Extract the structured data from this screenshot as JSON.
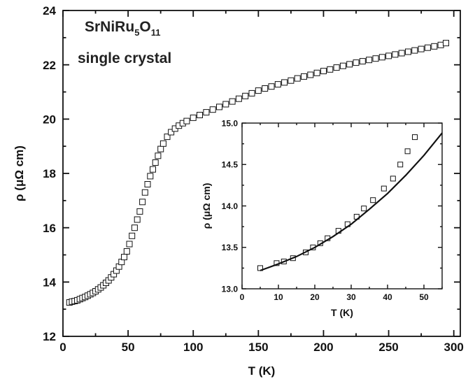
{
  "chart_data": [
    {
      "type": "scatter",
      "xlabel": "T (K)",
      "ylabel": "ρ (μΩ cm)",
      "xlim": [
        0,
        305
      ],
      "ylim": [
        12,
        24
      ],
      "xticks": [
        0,
        50,
        100,
        150,
        200,
        250,
        300
      ],
      "yticks": [
        12,
        14,
        16,
        18,
        20,
        22,
        24
      ],
      "marker": "open-square",
      "annotations": {
        "compound_base": "SrNiRu",
        "compound_sub1": "5",
        "compound_mid": "O",
        "compound_sub2": "11",
        "line2": "single crystal"
      },
      "series": [
        {
          "x": [
            5,
            7,
            9,
            11,
            13,
            15,
            17,
            19,
            21,
            23,
            25,
            27,
            29,
            31,
            33,
            35,
            37,
            39,
            41,
            43,
            45,
            47,
            49,
            51,
            53,
            55,
            57,
            59,
            61,
            63,
            65,
            67,
            69,
            71,
            73,
            75,
            77,
            80,
            83,
            86,
            89,
            92,
            95,
            100,
            105,
            110,
            115,
            120,
            125,
            130,
            135,
            140,
            145,
            150,
            155,
            160,
            165,
            170,
            175,
            180,
            185,
            190,
            195,
            200,
            205,
            210,
            215,
            220,
            225,
            230,
            235,
            240,
            245,
            250,
            255,
            260,
            265,
            270,
            275,
            280,
            285,
            290,
            294
          ],
          "y": [
            13.25,
            13.28,
            13.3,
            13.33,
            13.37,
            13.41,
            13.45,
            13.5,
            13.55,
            13.6,
            13.66,
            13.73,
            13.8,
            13.88,
            13.97,
            14.06,
            14.17,
            14.29,
            14.42,
            14.57,
            14.74,
            14.92,
            15.13,
            15.4,
            15.7,
            16.0,
            16.3,
            16.6,
            16.95,
            17.3,
            17.6,
            17.9,
            18.15,
            18.4,
            18.65,
            18.9,
            19.1,
            19.35,
            19.52,
            19.65,
            19.76,
            19.85,
            19.93,
            20.05,
            20.15,
            20.25,
            20.35,
            20.45,
            20.55,
            20.65,
            20.75,
            20.85,
            20.95,
            21.05,
            21.13,
            21.2,
            21.28,
            21.35,
            21.42,
            21.5,
            21.57,
            21.63,
            21.7,
            21.77,
            21.83,
            21.9,
            21.96,
            22.02,
            22.08,
            22.13,
            22.18,
            22.23,
            22.28,
            22.33,
            22.38,
            22.43,
            22.48,
            22.53,
            22.58,
            22.63,
            22.68,
            22.73,
            22.8
          ]
        }
      ]
    },
    {
      "type": "scatter",
      "xlabel": "T (K)",
      "ylabel": "ρ (μΩ cm)",
      "xlim": [
        0,
        55
      ],
      "ylim": [
        13.0,
        15.0
      ],
      "xticks": [
        0,
        10,
        20,
        30,
        40,
        50
      ],
      "yticks": [
        13.0,
        13.5,
        14.0,
        14.5,
        15.0
      ],
      "yticklabels": [
        "13.0",
        "13.5",
        "14.0",
        "14.5",
        "15.0"
      ],
      "marker": "open-square",
      "series": [
        {
          "x": [
            5,
            9.5,
            11.5,
            14,
            17.5,
            19.5,
            21.5,
            23.5,
            26.5,
            29,
            31.5,
            33.5,
            36,
            39,
            41.5,
            43.5,
            45.5,
            47.5
          ],
          "y": [
            13.25,
            13.31,
            13.33,
            13.37,
            13.44,
            13.5,
            13.55,
            13.61,
            13.7,
            13.78,
            13.87,
            13.97,
            14.07,
            14.21,
            14.33,
            14.5,
            14.66,
            14.83
          ]
        },
        {
          "type": "line",
          "x": [
            5,
            10,
            15,
            20,
            25,
            30,
            35,
            40,
            45,
            50,
            55
          ],
          "y": [
            13.22,
            13.3,
            13.39,
            13.5,
            13.63,
            13.78,
            13.96,
            14.15,
            14.37,
            14.61,
            14.88
          ]
        }
      ]
    }
  ]
}
